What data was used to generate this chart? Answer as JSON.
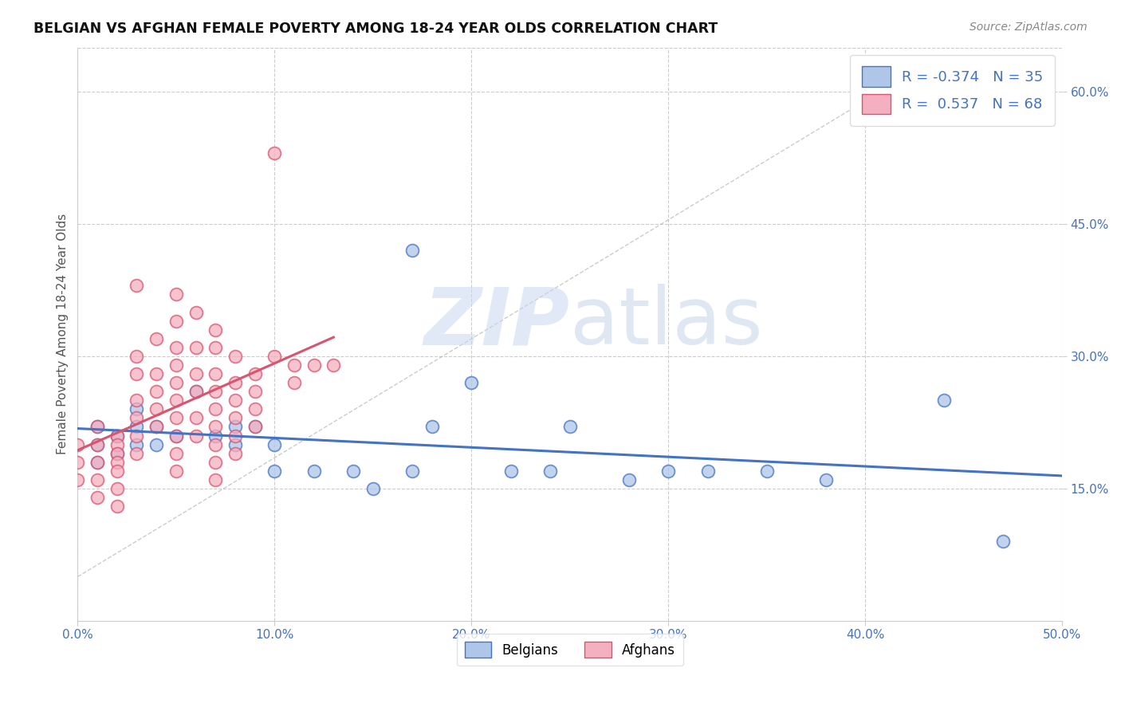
{
  "title": "BELGIAN VS AFGHAN FEMALE POVERTY AMONG 18-24 YEAR OLDS CORRELATION CHART",
  "source": "Source: ZipAtlas.com",
  "ylabel": "Female Poverty Among 18-24 Year Olds",
  "xlabel": "",
  "xlim": [
    0.0,
    0.5
  ],
  "ylim": [
    0.0,
    0.65
  ],
  "xtick_labels": [
    "0.0%",
    "10.0%",
    "20.0%",
    "30.0%",
    "40.0%",
    "50.0%"
  ],
  "xtick_vals": [
    0.0,
    0.1,
    0.2,
    0.3,
    0.4,
    0.5
  ],
  "ytick_labels": [
    "15.0%",
    "30.0%",
    "45.0%",
    "60.0%"
  ],
  "ytick_vals": [
    0.15,
    0.3,
    0.45,
    0.6
  ],
  "belgian_R": -0.374,
  "belgian_N": 35,
  "afghan_R": 0.537,
  "afghan_N": 68,
  "belgian_color": "#aec6e8",
  "afghan_color": "#f4afc0",
  "belgian_line_color": "#4472c4",
  "afghan_line_color": "#d9546e",
  "watermark_zip": "ZIP",
  "watermark_atlas": "atlas",
  "belgians_x": [
    0.01,
    0.01,
    0.01,
    0.02,
    0.02,
    0.03,
    0.03,
    0.03,
    0.04,
    0.04,
    0.05,
    0.06,
    0.07,
    0.08,
    0.08,
    0.09,
    0.1,
    0.1,
    0.12,
    0.14,
    0.15,
    0.17,
    0.17,
    0.18,
    0.2,
    0.22,
    0.24,
    0.25,
    0.28,
    0.3,
    0.32,
    0.35,
    0.38,
    0.44,
    0.47
  ],
  "belgians_y": [
    0.22,
    0.2,
    0.18,
    0.21,
    0.19,
    0.24,
    0.22,
    0.2,
    0.22,
    0.2,
    0.21,
    0.26,
    0.21,
    0.22,
    0.2,
    0.22,
    0.2,
    0.17,
    0.17,
    0.17,
    0.15,
    0.42,
    0.17,
    0.22,
    0.27,
    0.17,
    0.17,
    0.22,
    0.16,
    0.17,
    0.17,
    0.17,
    0.16,
    0.25,
    0.09
  ],
  "afghans_x": [
    0.0,
    0.0,
    0.0,
    0.01,
    0.01,
    0.01,
    0.01,
    0.01,
    0.02,
    0.02,
    0.02,
    0.02,
    0.02,
    0.02,
    0.02,
    0.03,
    0.03,
    0.03,
    0.03,
    0.03,
    0.03,
    0.03,
    0.04,
    0.04,
    0.04,
    0.04,
    0.04,
    0.05,
    0.05,
    0.05,
    0.05,
    0.05,
    0.05,
    0.05,
    0.05,
    0.05,
    0.05,
    0.06,
    0.06,
    0.06,
    0.06,
    0.06,
    0.06,
    0.07,
    0.07,
    0.07,
    0.07,
    0.07,
    0.07,
    0.07,
    0.07,
    0.07,
    0.08,
    0.08,
    0.08,
    0.08,
    0.08,
    0.08,
    0.09,
    0.09,
    0.09,
    0.09,
    0.1,
    0.1,
    0.11,
    0.11,
    0.12,
    0.13
  ],
  "afghans_y": [
    0.2,
    0.18,
    0.16,
    0.22,
    0.2,
    0.18,
    0.16,
    0.14,
    0.21,
    0.2,
    0.19,
    0.18,
    0.17,
    0.15,
    0.13,
    0.38,
    0.3,
    0.28,
    0.25,
    0.23,
    0.21,
    0.19,
    0.32,
    0.28,
    0.26,
    0.24,
    0.22,
    0.37,
    0.34,
    0.31,
    0.29,
    0.27,
    0.25,
    0.23,
    0.21,
    0.19,
    0.17,
    0.35,
    0.31,
    0.28,
    0.26,
    0.23,
    0.21,
    0.33,
    0.31,
    0.28,
    0.26,
    0.24,
    0.22,
    0.2,
    0.18,
    0.16,
    0.3,
    0.27,
    0.25,
    0.23,
    0.21,
    0.19,
    0.28,
    0.26,
    0.24,
    0.22,
    0.53,
    0.3,
    0.29,
    0.27,
    0.29,
    0.29
  ]
}
